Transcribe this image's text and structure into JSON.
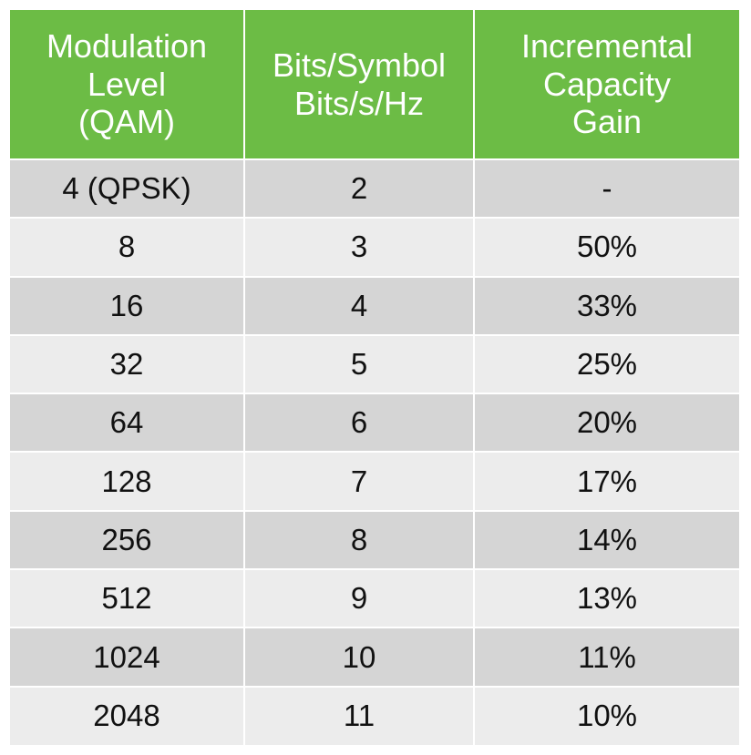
{
  "table": {
    "headers": [
      "Modulation\nLevel\n(QAM)",
      "Bits/Symbol\nBits/s/Hz",
      "Incremental\nCapacity\nGain"
    ],
    "rows": [
      [
        "4 (QPSK)",
        "2",
        "-"
      ],
      [
        "8",
        "3",
        "50%"
      ],
      [
        "16",
        "4",
        "33%"
      ],
      [
        "32",
        "5",
        "25%"
      ],
      [
        "64",
        "6",
        "20%"
      ],
      [
        "128",
        "7",
        "17%"
      ],
      [
        "256",
        "8",
        "14%"
      ],
      [
        "512",
        "9",
        "13%"
      ],
      [
        "1024",
        "10",
        "11%"
      ],
      [
        "2048",
        "11",
        "10%"
      ]
    ]
  },
  "colors": {
    "header_bg": "#6cbc45",
    "header_text": "#ffffff",
    "row_dark": "#d5d5d5",
    "row_light": "#ececec"
  }
}
